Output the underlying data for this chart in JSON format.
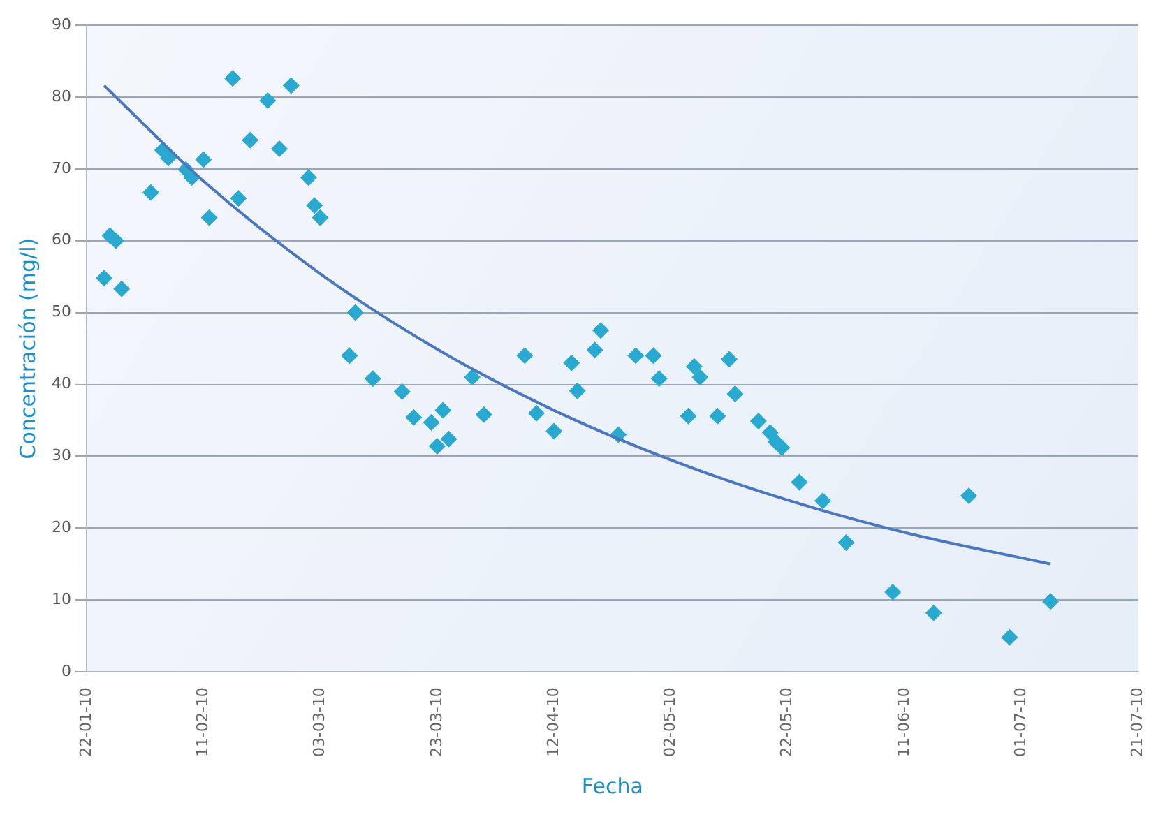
{
  "chart_data": {
    "type": "scatter",
    "xlabel": "Fecha",
    "ylabel": "Concentración (mg/l)",
    "xlim": [
      "2010-01-22",
      "2010-07-21"
    ],
    "xticks": [
      {
        "value": "2010-01-22",
        "label": "22-01-10"
      },
      {
        "value": "2010-02-11",
        "label": "11-02-10"
      },
      {
        "value": "2010-03-03",
        "label": "03-03-10"
      },
      {
        "value": "2010-03-23",
        "label": "23-03-10"
      },
      {
        "value": "2010-04-12",
        "label": "12-04-10"
      },
      {
        "value": "2010-05-02",
        "label": "02-05-10"
      },
      {
        "value": "2010-05-22",
        "label": "22-05-10"
      },
      {
        "value": "2010-06-11",
        "label": "11-06-10"
      },
      {
        "value": "2010-07-01",
        "label": "01-07-10"
      },
      {
        "value": "2010-07-21",
        "label": "21-07-10"
      }
    ],
    "ylim": [
      0,
      90
    ],
    "yticks": [
      0,
      10,
      20,
      30,
      40,
      50,
      60,
      70,
      80,
      90
    ],
    "grid": "y",
    "legend": false,
    "marker": "diamond",
    "series": [
      {
        "type": "scatter",
        "color": "#29a9d0",
        "x": [
          "2010-01-25",
          "2010-01-26",
          "2010-01-27",
          "2010-01-28",
          "2010-02-02",
          "2010-02-04",
          "2010-02-05",
          "2010-02-08",
          "2010-02-09",
          "2010-02-11",
          "2010-02-12",
          "2010-02-16",
          "2010-02-17",
          "2010-02-19",
          "2010-02-22",
          "2010-02-24",
          "2010-02-26",
          "2010-03-01",
          "2010-03-02",
          "2010-03-03",
          "2010-03-09",
          "2010-03-08",
          "2010-03-12",
          "2010-03-17",
          "2010-03-19",
          "2010-03-22",
          "2010-03-24",
          "2010-03-23",
          "2010-03-25",
          "2010-03-29",
          "2010-03-31",
          "2010-04-07",
          "2010-04-09",
          "2010-04-12",
          "2010-04-15",
          "2010-04-16",
          "2010-04-19",
          "2010-04-20",
          "2010-04-23",
          "2010-04-26",
          "2010-04-29",
          "2010-04-30",
          "2010-05-05",
          "2010-05-06",
          "2010-05-07",
          "2010-05-10",
          "2010-05-12",
          "2010-05-13",
          "2010-05-17",
          "2010-05-19",
          "2010-05-20",
          "2010-05-21",
          "2010-05-24",
          "2010-05-28",
          "2010-06-01",
          "2010-06-09",
          "2010-06-16",
          "2010-06-22",
          "2010-06-29",
          "2010-07-06"
        ],
        "values": [
          54.8,
          60.7,
          60,
          53.3,
          66.7,
          72.6,
          71.5,
          69.9,
          68.8,
          71.3,
          63.2,
          82.6,
          65.9,
          74,
          79.5,
          72.8,
          81.6,
          68.8,
          64.9,
          63.2,
          50,
          44,
          40.8,
          39,
          35.4,
          34.7,
          36.4,
          31.4,
          32.4,
          41,
          35.8,
          44,
          36,
          33.5,
          43,
          39.1,
          44.8,
          47.5,
          33,
          44,
          44,
          40.8,
          35.6,
          42.5,
          41,
          35.6,
          43.5,
          38.7,
          34.9,
          33.3,
          32,
          31.2,
          26.4,
          23.8,
          18,
          11.1,
          8.2,
          24.5,
          4.8,
          9.8
        ]
      },
      {
        "type": "line",
        "color": "#4a78c0",
        "marker": "none",
        "x": [
          "2010-01-25",
          "2010-02-11",
          "2010-03-03",
          "2010-03-23",
          "2010-04-12",
          "2010-05-02",
          "2010-05-22",
          "2010-06-11",
          "2010-07-06"
        ],
        "values": [
          81.6,
          68.3,
          55.4,
          44.9,
          36.4,
          29.5,
          23.9,
          19.4,
          15
        ]
      }
    ]
  }
}
